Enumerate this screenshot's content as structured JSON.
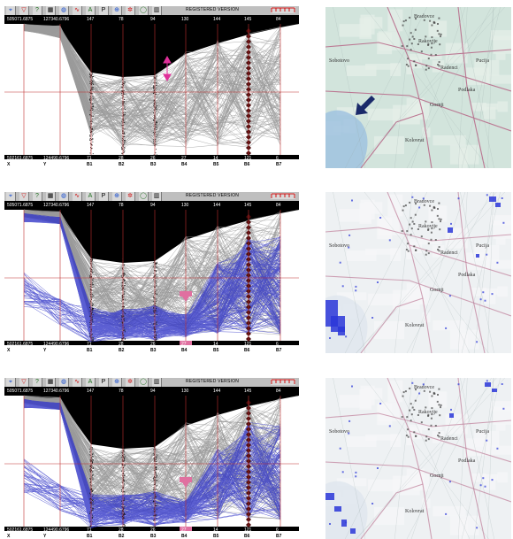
{
  "toolbar": {
    "title": "REGISTERED VERSION",
    "tool_icons": [
      "parallel-icon",
      "select-icon",
      "query-icon",
      "grid-icon",
      "palette-icon",
      "cluster-icon",
      "ab-icon",
      "zoom-icon",
      "crosshair-icon",
      "color-wheel-icon",
      "ellipse-icon",
      "lines-icon"
    ]
  },
  "axes": {
    "names": [
      "X",
      "Y",
      "B1",
      "B2",
      "B3",
      "B4",
      "B5",
      "B6",
      "B7"
    ],
    "max": [
      "505071.6875",
      "127340.6796",
      "147",
      "78",
      "94",
      "130",
      "144",
      "145",
      "84"
    ],
    "min": [
      "502161.6875",
      "124490.6796",
      "71",
      "28",
      "26",
      "27",
      "14",
      "121",
      "6"
    ]
  },
  "panels": [
    {
      "id": "panel-1",
      "selection": "none"
    },
    {
      "id": "panel-2",
      "selection": "B4 range"
    },
    {
      "id": "panel-3",
      "selection": "B4 range"
    }
  ],
  "map": {
    "labels": [
      "Bradovce",
      "Rakovtje",
      "Sobotovo",
      "Radenci",
      "Pucija",
      "Podlaka",
      "Gornji",
      "Kolovrat"
    ],
    "colors": {
      "road": "#b86a8a",
      "water": "#5a8ac8",
      "select": "#2a36d8"
    }
  }
}
